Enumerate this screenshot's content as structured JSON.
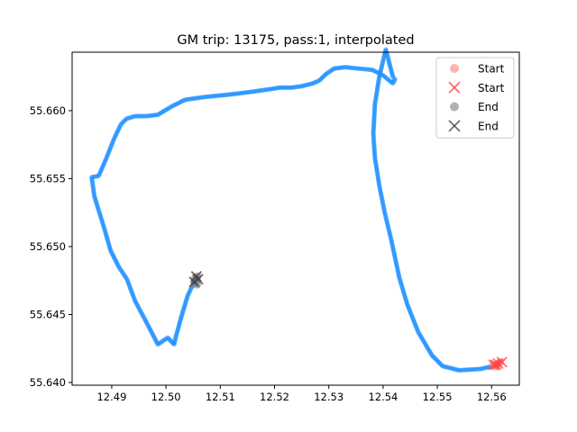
{
  "chart_data": {
    "type": "scatter",
    "title": "GM trip: 13175, pass:1, interpolated",
    "xlabel": "",
    "ylabel": "",
    "xlim": [
      12.4827,
      12.5651
    ],
    "ylim": [
      55.6398,
      55.6643
    ],
    "x_ticks": [
      "12.49",
      "12.50",
      "12.51",
      "12.52",
      "12.53",
      "12.54",
      "12.55",
      "12.56"
    ],
    "y_ticks": [
      "55.640",
      "55.645",
      "55.650",
      "55.655",
      "55.660"
    ],
    "grid": false,
    "legend_position": "top-right",
    "colors": {
      "route": "#1e90ff",
      "start_point": "#ff7f7f",
      "start_cross": "#ff4040",
      "end_point": "#7f7f7f",
      "end_cross": "#404040"
    },
    "series": [
      {
        "name": "",
        "marker": "dot",
        "color": "#1e90ff",
        "x": [
          12.5613,
          12.558,
          12.554,
          12.551,
          12.549,
          12.5465,
          12.5445,
          12.543,
          12.5415,
          12.5403,
          12.5393,
          12.5385,
          12.5382,
          12.5385,
          12.5393,
          12.5405,
          12.5418,
          12.5422,
          12.5418,
          12.54,
          12.538,
          12.5355,
          12.533,
          12.531,
          12.5295,
          12.5282,
          12.527,
          12.525,
          12.5232,
          12.5222,
          12.521,
          12.5195,
          12.516,
          12.512,
          12.507,
          12.5035,
          12.501,
          12.4985,
          12.4965,
          12.4943,
          12.4927,
          12.4917,
          12.4905,
          12.489,
          12.4876,
          12.4863,
          12.4868,
          12.4885,
          12.4898,
          12.4913,
          12.4928,
          12.4943,
          12.4963,
          12.4985,
          12.5003,
          12.5015,
          12.5017,
          12.5028,
          12.504,
          12.5052,
          12.5058
        ],
        "y": [
          55.6413,
          55.641,
          55.6409,
          55.6412,
          55.642,
          55.6437,
          55.6457,
          55.6477,
          55.6505,
          55.6525,
          55.6545,
          55.6565,
          55.6583,
          55.6605,
          55.6625,
          55.6645,
          55.6625,
          55.6623,
          55.662,
          55.6626,
          55.663,
          55.6631,
          55.6632,
          55.6631,
          55.6627,
          55.6622,
          55.662,
          55.6618,
          55.6617,
          55.6617,
          55.6617,
          55.6616,
          55.6614,
          55.6612,
          55.661,
          55.6608,
          55.6603,
          55.6597,
          55.6596,
          55.6596,
          55.6594,
          55.659,
          55.658,
          55.6565,
          55.6552,
          55.6551,
          55.6537,
          55.6515,
          55.6497,
          55.6485,
          55.6476,
          55.646,
          55.6445,
          55.6428,
          55.6433,
          55.6428,
          55.6432,
          55.6448,
          55.6464,
          55.6474,
          55.6477
        ]
      },
      {
        "name": "Start",
        "marker": "circle",
        "color": "#ff7f7f",
        "x": [
          12.5603,
          12.5608,
          12.5612,
          12.5616,
          12.5606,
          12.561
        ],
        "y": [
          55.6413,
          55.6413,
          55.6414,
          55.6415,
          55.6412,
          55.6412
        ]
      },
      {
        "name": "Start",
        "marker": "x",
        "color": "#ff4040",
        "x": [
          12.5604,
          12.5612,
          12.5619,
          12.5608
        ],
        "y": [
          55.6413,
          55.6414,
          55.6415,
          55.6413
        ]
      },
      {
        "name": "End",
        "marker": "circle",
        "color": "#7f7f7f",
        "x": [
          12.5052,
          12.5055,
          12.5058,
          12.5053,
          12.5056,
          12.5054,
          12.5057
        ],
        "y": [
          55.6474,
          55.6476,
          55.6478,
          55.6473,
          55.6475,
          55.6477,
          55.6472
        ]
      },
      {
        "name": "End",
        "marker": "x",
        "color": "#404040",
        "x": [
          12.5056,
          12.5052,
          12.5059
        ],
        "y": [
          55.6478,
          55.6474,
          55.6476
        ]
      }
    ]
  }
}
